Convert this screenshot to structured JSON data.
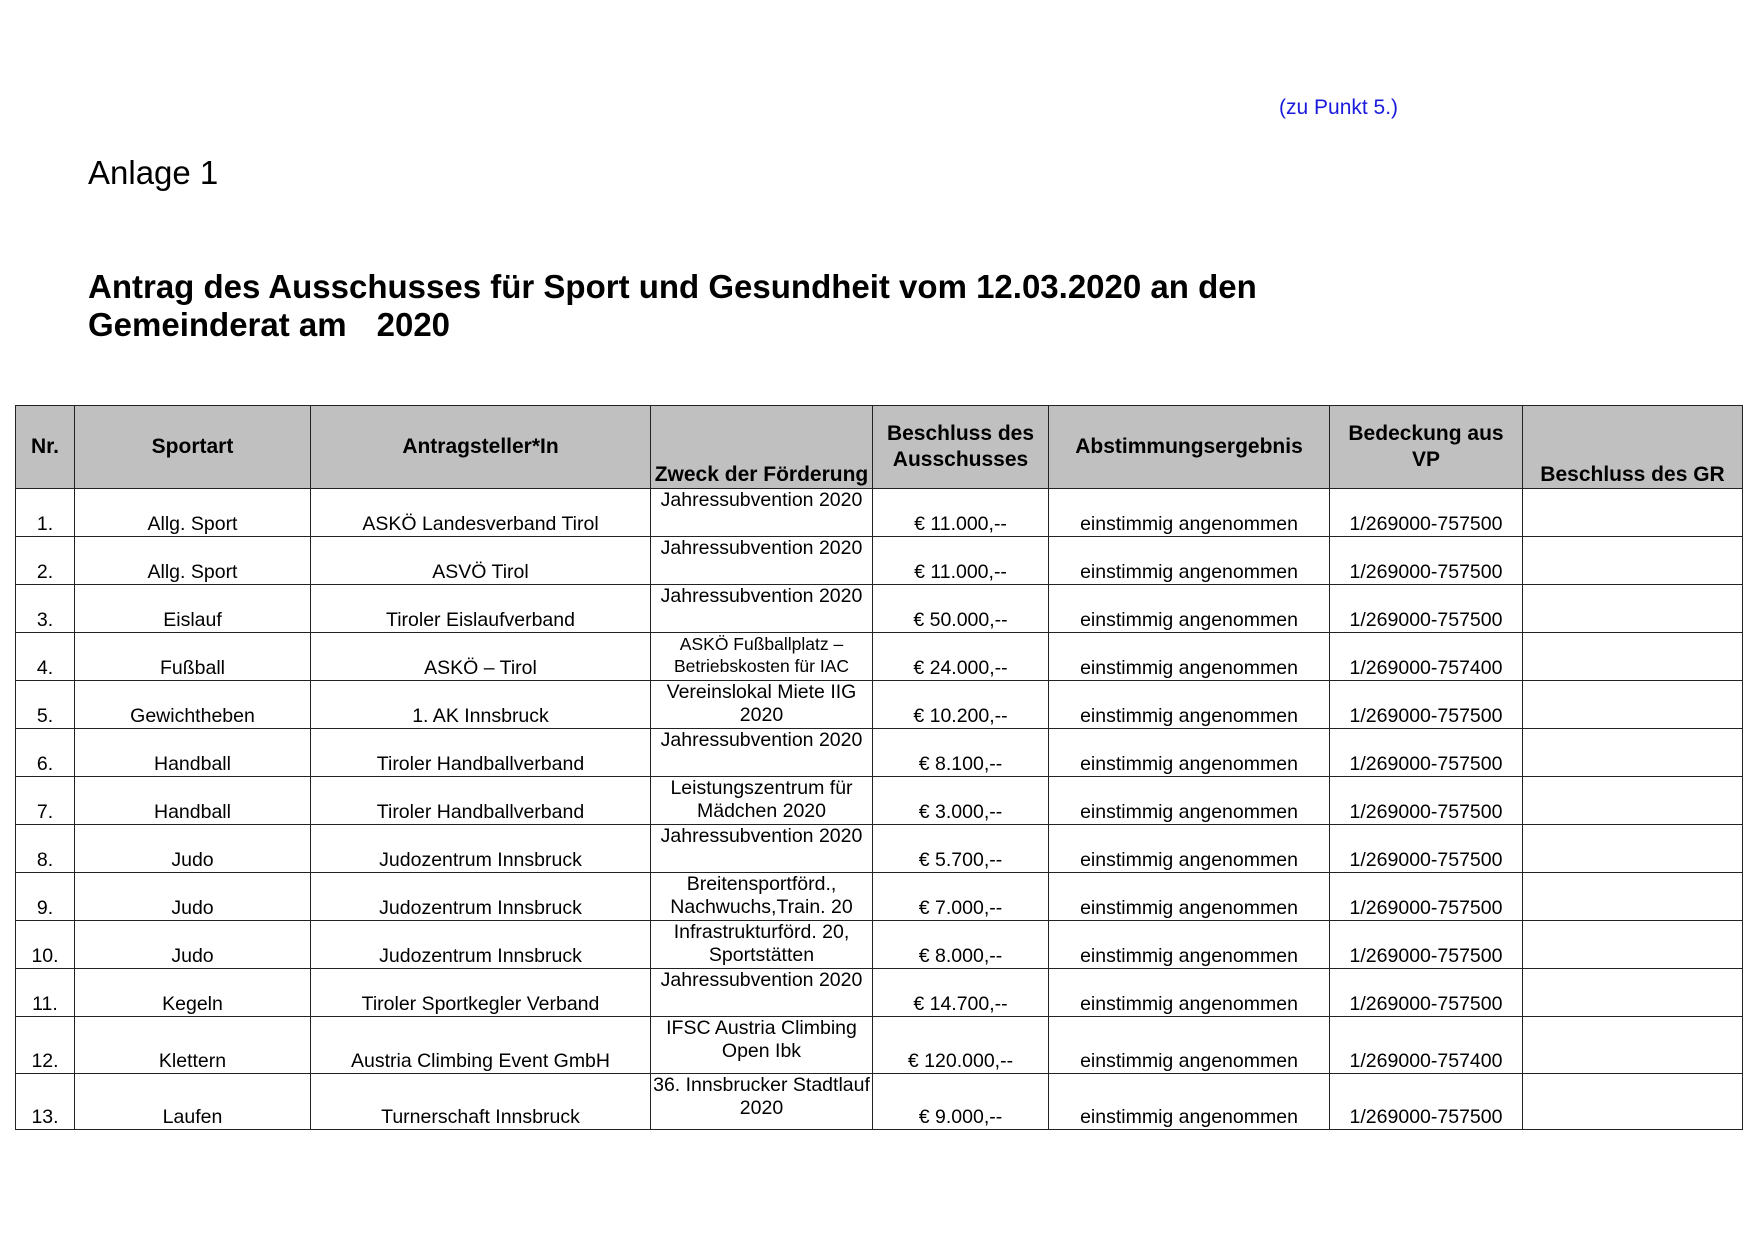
{
  "reference": "(zu Punkt 5.)",
  "attachment": "Anlage 1",
  "title_line1": "Antrag des Ausschusses für Sport und Gesundheit vom 12.03.2020 an den",
  "title_line2_a": "Gemeinderat am",
  "title_line2_b": "2020",
  "table": {
    "headers": [
      "Nr.",
      "Sportart",
      "Antragsteller*In",
      "Zweck der Förderung",
      "Beschluss des Ausschusses",
      "Abstimmungsergebnis",
      "Bedeckung aus VP",
      "Beschluss des GR"
    ],
    "rows": [
      [
        "1.",
        "Allg. Sport",
        "ASKÖ Landesverband Tirol",
        "Jahressubvention 2020",
        "€  11.000,--",
        "einstimmig angenommen",
        "1/269000-757500",
        ""
      ],
      [
        "2.",
        "Allg. Sport",
        "ASVÖ Tirol",
        "Jahressubvention 2020",
        "€  11.000,--",
        "einstimmig angenommen",
        "1/269000-757500",
        ""
      ],
      [
        "3.",
        "Eislauf",
        "Tiroler Eislaufverband",
        "Jahressubvention 2020",
        "€ 50.000,--",
        "einstimmig angenommen",
        "1/269000-757500",
        ""
      ],
      [
        "4.",
        "Fußball",
        "ASKÖ – Tirol",
        "ASKÖ Fußballplatz – Betriebskosten für IAC",
        "€  24.000,--",
        "einstimmig angenommen",
        "1/269000-757400",
        ""
      ],
      [
        "5.",
        "Gewichtheben",
        "1. AK Innsbruck",
        "Vereinslokal Miete IIG 2020",
        "€ 10.200,--",
        "einstimmig angenommen",
        "1/269000-757500",
        ""
      ],
      [
        "6.",
        "Handball",
        "Tiroler Handballverband",
        "Jahressubvention 2020",
        "€  8.100,--",
        "einstimmig angenommen",
        "1/269000-757500",
        ""
      ],
      [
        "7.",
        "Handball",
        "Tiroler Handballverband",
        "Leistungszentrum für Mädchen 2020",
        "€ 3.000,--",
        "einstimmig angenommen",
        "1/269000-757500",
        ""
      ],
      [
        "8.",
        "Judo",
        "Judozentrum Innsbruck",
        "Jahressubvention 2020",
        "€  5.700,--",
        "einstimmig angenommen",
        "1/269000-757500",
        ""
      ],
      [
        "9.",
        "Judo",
        "Judozentrum Innsbruck",
        "Breitensportförd., Nachwuchs,Train. 20",
        "€  7.000,--",
        "einstimmig angenommen",
        "1/269000-757500",
        ""
      ],
      [
        "10.",
        "Judo",
        "Judozentrum Innsbruck",
        "Infrastrukturförd. 20, Sportstätten",
        "€  8.000,--",
        "einstimmig angenommen",
        "1/269000-757500",
        ""
      ],
      [
        "11.",
        "Kegeln",
        "Tiroler Sportkegler Verband",
        "Jahressubvention 2020",
        "€   14.700,--",
        "einstimmig angenommen",
        "1/269000-757500",
        ""
      ],
      [
        "12.",
        "Klettern",
        "Austria Climbing Event GmbH",
        "IFSC Austria Climbing Open Ibk",
        "€ 120.000,--",
        "einstimmig angenommen",
        "1/269000-757400",
        ""
      ],
      [
        "13.",
        "Laufen",
        "Turnerschaft Innsbruck",
        "36. Innsbrucker Stadtlauf 2020",
        "€ 9.000,--",
        "einstimmig angenommen",
        "1/269000-757500",
        ""
      ]
    ]
  },
  "colors": {
    "reference": "#1a1adc",
    "header_bg": "#c0c0c0"
  }
}
